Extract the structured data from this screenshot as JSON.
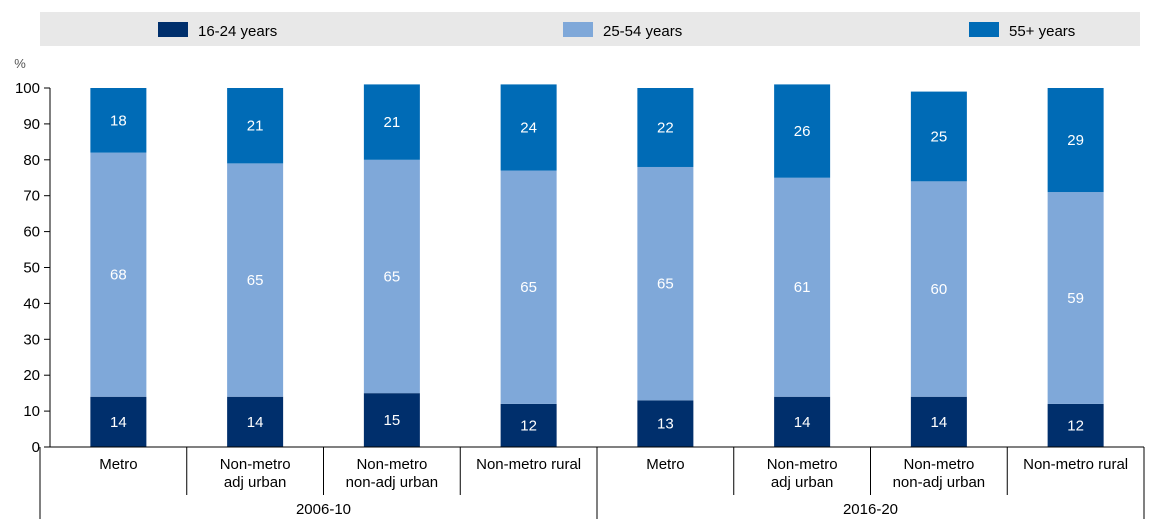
{
  "chart_data": {
    "type": "bar",
    "stacked": true,
    "groups": [
      {
        "label": "2006-10",
        "categories": [
          "Metro",
          "Non-metro\nadj urban",
          "Non-metro\nnon-adj urban",
          "Non-metro rural"
        ]
      },
      {
        "label": "2016-20",
        "categories": [
          "Metro",
          "Non-metro\nadj urban",
          "Non-metro\nnon-adj urban",
          "Non-metro rural"
        ]
      }
    ],
    "categories": [
      "Metro",
      "Non-metro\nadj urban",
      "Non-metro\nnon-adj urban",
      "Non-metro rural",
      "Metro",
      "Non-metro\nadj urban",
      "Non-metro\nnon-adj urban",
      "Non-metro rural"
    ],
    "series": [
      {
        "name": "16-24 years",
        "color": "#002F6C",
        "values": [
          14,
          14,
          15,
          12,
          13,
          14,
          14,
          12
        ]
      },
      {
        "name": "25-54 years",
        "color": "#7FA8D9",
        "values": [
          68,
          65,
          65,
          65,
          65,
          61,
          60,
          59
        ]
      },
      {
        "name": "55+ years",
        "color": "#006BB6",
        "values": [
          18,
          21,
          21,
          24,
          22,
          26,
          25,
          29
        ]
      }
    ],
    "value_labels": [
      [
        14,
        14,
        15,
        12,
        13,
        14,
        14,
        12
      ],
      [
        68,
        65,
        65,
        65,
        65,
        61,
        60,
        59
      ],
      [
        18,
        21,
        21,
        24,
        22,
        26,
        25,
        29
      ]
    ],
    "ylabel": "%",
    "ylim": [
      0,
      100
    ],
    "yticks": [
      0,
      10,
      20,
      30,
      40,
      50,
      60,
      70,
      80,
      90,
      100
    ],
    "grid": false,
    "legend_position": "top"
  }
}
